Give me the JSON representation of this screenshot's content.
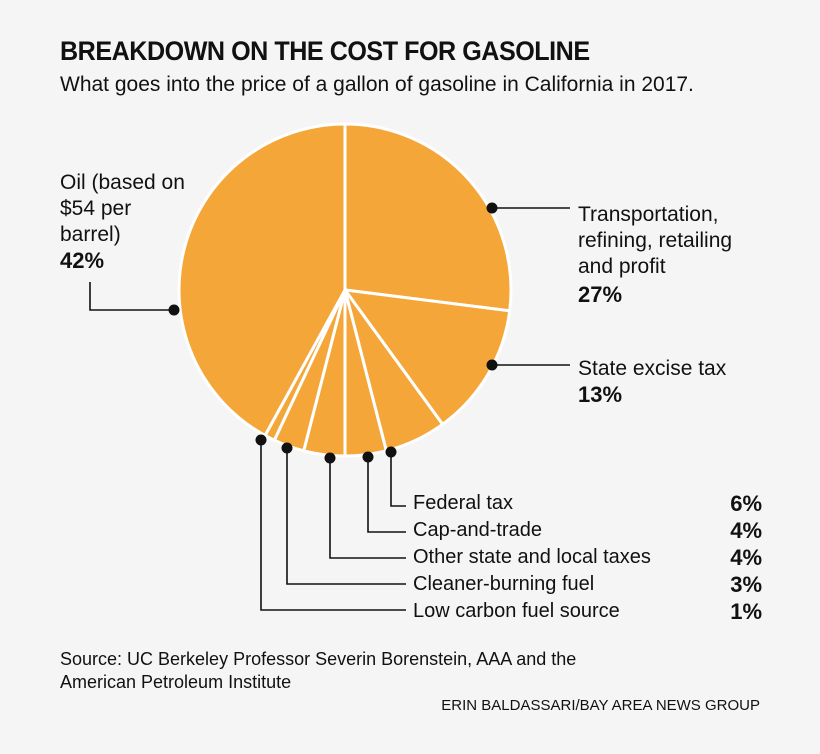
{
  "chart_data": {
    "type": "pie",
    "title": "BREAKDOWN ON THE COST FOR GASOLINE",
    "subtitle": "What goes into the price of a gallon of gasoline in California in 2017.",
    "start": "top",
    "direction": "clockwise",
    "color": "#F5A638",
    "slices": [
      {
        "label": "Transportation, refining, retailing and profit",
        "value": 27,
        "display": "27%"
      },
      {
        "label": "State excise tax",
        "value": 13,
        "display": "13%"
      },
      {
        "label": "Federal tax",
        "value": 6,
        "display": "6%"
      },
      {
        "label": "Cap-and-trade",
        "value": 4,
        "display": "4%"
      },
      {
        "label": "Other state and local taxes",
        "value": 4,
        "display": "4%"
      },
      {
        "label": "Cleaner-burning fuel",
        "value": 3,
        "display": "3%"
      },
      {
        "label": "Low carbon fuel source",
        "value": 1,
        "display": "1%"
      },
      {
        "label": "Oil (based on $54 per barrel)",
        "value": 42,
        "display": "42%"
      }
    ],
    "source": "Source: UC Berkeley Professor Severin Borenstein, AAA and the American Petroleum Institute",
    "credit": "ERIN BALDASSARI/BAY AREA NEWS GROUP"
  }
}
